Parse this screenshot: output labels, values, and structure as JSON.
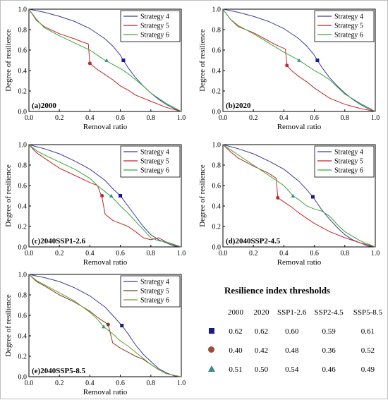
{
  "colors": {
    "s4": "#3b3b98",
    "s5": "#c2242b",
    "s6": "#3aa83a",
    "s5_e": "#7b3f1f",
    "s6_e": "#6ea03a",
    "marker_sq": "#1a1a8a",
    "marker_ci": "#9c4a3c",
    "marker_tri": "#3a8a8a"
  },
  "chart_data": [
    {
      "type": "line",
      "panel_label": "(a)2000",
      "xlabel": "Removal ratio",
      "ylabel": "Degree of resilience",
      "xlim": [
        0,
        1
      ],
      "ylim": [
        0,
        1
      ],
      "xticks": [
        "0.0",
        "0.2",
        "0.4",
        "0.6",
        "0.8",
        "1.0"
      ],
      "yticks": [
        "0.0",
        "0.2",
        "0.4",
        "0.6",
        "0.8",
        "1.0"
      ],
      "legend_position": "top-right",
      "series": [
        {
          "name": "Strategy 4",
          "x": [
            0,
            0.1,
            0.2,
            0.3,
            0.4,
            0.5,
            0.55,
            0.6,
            0.62,
            0.65,
            0.7,
            0.75,
            0.8,
            0.85,
            0.9,
            0.95,
            1.0
          ],
          "y": [
            1.0,
            0.97,
            0.93,
            0.88,
            0.81,
            0.71,
            0.64,
            0.55,
            0.5,
            0.43,
            0.33,
            0.25,
            0.18,
            0.12,
            0.07,
            0.03,
            0.0
          ]
        },
        {
          "name": "Strategy 5",
          "x": [
            0,
            0.05,
            0.1,
            0.2,
            0.3,
            0.35,
            0.39,
            0.4,
            0.45,
            0.5,
            0.55,
            0.6,
            0.65,
            0.7,
            0.8,
            0.9,
            1.0
          ],
          "y": [
            1.0,
            0.89,
            0.83,
            0.76,
            0.71,
            0.68,
            0.66,
            0.47,
            0.41,
            0.36,
            0.31,
            0.25,
            0.21,
            0.16,
            0.1,
            0.04,
            0.0
          ]
        },
        {
          "name": "Strategy 6",
          "x": [
            0,
            0.05,
            0.1,
            0.2,
            0.3,
            0.4,
            0.45,
            0.5,
            0.55,
            0.6,
            0.65,
            0.7,
            0.75,
            0.8,
            0.9,
            1.0
          ],
          "y": [
            1.0,
            0.9,
            0.82,
            0.74,
            0.67,
            0.6,
            0.55,
            0.5,
            0.46,
            0.42,
            0.37,
            0.31,
            0.25,
            0.18,
            0.08,
            0.0
          ]
        }
      ],
      "markers": [
        {
          "x": 0.62,
          "y": 0.5
        },
        {
          "x": 0.4,
          "y": 0.47
        },
        {
          "x": 0.51,
          "y": 0.5
        }
      ]
    },
    {
      "type": "line",
      "panel_label": "(b)2020",
      "xlabel": "Removal ratio",
      "ylabel": "Degree of resilience",
      "xlim": [
        0,
        1
      ],
      "ylim": [
        0,
        1
      ],
      "xticks": [
        "0.0",
        "0.2",
        "0.4",
        "0.6",
        "0.8",
        "1.0"
      ],
      "yticks": [
        "0.0",
        "0.2",
        "0.4",
        "0.6",
        "0.8",
        "1.0"
      ],
      "legend_position": "top-right",
      "series": [
        {
          "name": "Strategy 4",
          "x": [
            0,
            0.1,
            0.2,
            0.3,
            0.4,
            0.5,
            0.55,
            0.6,
            0.62,
            0.65,
            0.7,
            0.75,
            0.8,
            0.85,
            0.9,
            0.95,
            1.0
          ],
          "y": [
            1.0,
            0.97,
            0.93,
            0.88,
            0.81,
            0.71,
            0.64,
            0.55,
            0.5,
            0.43,
            0.33,
            0.25,
            0.18,
            0.12,
            0.07,
            0.03,
            0.0
          ]
        },
        {
          "name": "Strategy 5",
          "x": [
            0,
            0.05,
            0.1,
            0.2,
            0.3,
            0.35,
            0.41,
            0.42,
            0.45,
            0.5,
            0.55,
            0.6,
            0.65,
            0.7,
            0.8,
            0.9,
            1.0
          ],
          "y": [
            1.0,
            0.9,
            0.83,
            0.77,
            0.69,
            0.65,
            0.61,
            0.45,
            0.4,
            0.34,
            0.29,
            0.23,
            0.18,
            0.13,
            0.07,
            0.03,
            0.0
          ]
        },
        {
          "name": "Strategy 6",
          "x": [
            0,
            0.05,
            0.1,
            0.2,
            0.3,
            0.4,
            0.45,
            0.5,
            0.55,
            0.6,
            0.65,
            0.7,
            0.75,
            0.8,
            0.9,
            1.0
          ],
          "y": [
            1.0,
            0.9,
            0.84,
            0.76,
            0.67,
            0.58,
            0.54,
            0.5,
            0.45,
            0.4,
            0.36,
            0.31,
            0.24,
            0.17,
            0.08,
            0.0
          ]
        }
      ],
      "markers": [
        {
          "x": 0.62,
          "y": 0.5
        },
        {
          "x": 0.42,
          "y": 0.45
        },
        {
          "x": 0.5,
          "y": 0.5
        }
      ]
    },
    {
      "type": "line",
      "panel_label": "(c)2040SSP1-2.6",
      "xlabel": "Removal ratio",
      "ylabel": "Degree of resilience",
      "xlim": [
        0,
        1
      ],
      "ylim": [
        0,
        1
      ],
      "xticks": [
        "0.0",
        "0.2",
        "0.4",
        "0.6",
        "0.8",
        "1.0"
      ],
      "yticks": [
        "0.0",
        "0.2",
        "0.4",
        "0.6",
        "0.8",
        "1.0"
      ],
      "legend_position": "top-right",
      "series": [
        {
          "name": "Strategy 4",
          "x": [
            0,
            0.1,
            0.2,
            0.3,
            0.4,
            0.5,
            0.55,
            0.6,
            0.65,
            0.7,
            0.75,
            0.8,
            0.85,
            0.9,
            0.95,
            1.0
          ],
          "y": [
            1.0,
            0.96,
            0.91,
            0.84,
            0.76,
            0.65,
            0.57,
            0.5,
            0.4,
            0.3,
            0.2,
            0.12,
            0.07,
            0.04,
            0.01,
            0.0
          ]
        },
        {
          "name": "Strategy 5",
          "x": [
            0,
            0.05,
            0.1,
            0.2,
            0.3,
            0.4,
            0.45,
            0.48,
            0.5,
            0.55,
            0.6,
            0.65,
            0.7,
            0.75,
            0.8,
            0.85,
            0.9,
            0.95,
            1.0
          ],
          "y": [
            1.0,
            0.92,
            0.87,
            0.77,
            0.7,
            0.63,
            0.6,
            0.48,
            0.32,
            0.26,
            0.23,
            0.2,
            0.15,
            0.09,
            0.07,
            0.09,
            0.05,
            0.02,
            0.0
          ]
        },
        {
          "name": "Strategy 6",
          "x": [
            0,
            0.05,
            0.1,
            0.2,
            0.3,
            0.4,
            0.45,
            0.5,
            0.55,
            0.6,
            0.65,
            0.7,
            0.75,
            0.8,
            0.85,
            0.9,
            1.0
          ],
          "y": [
            1.0,
            0.94,
            0.9,
            0.83,
            0.76,
            0.67,
            0.6,
            0.54,
            0.48,
            0.4,
            0.33,
            0.25,
            0.17,
            0.09,
            0.06,
            0.05,
            0.0
          ]
        }
      ],
      "markers": [
        {
          "x": 0.6,
          "y": 0.5
        },
        {
          "x": 0.48,
          "y": 0.5
        },
        {
          "x": 0.54,
          "y": 0.5
        }
      ]
    },
    {
      "type": "line",
      "panel_label": "(d)2040SSP2-4.5",
      "xlabel": "Removal ratio",
      "ylabel": "Degree of resilience",
      "xlim": [
        0,
        1
      ],
      "ylim": [
        0,
        1
      ],
      "xticks": [
        "0.0",
        "0.2",
        "0.4",
        "0.6",
        "0.8",
        "1.0"
      ],
      "yticks": [
        "0.0",
        "0.2",
        "0.4",
        "0.6",
        "0.8",
        "1.0"
      ],
      "legend_position": "top-right",
      "series": [
        {
          "name": "Strategy 4",
          "x": [
            0,
            0.1,
            0.2,
            0.3,
            0.4,
            0.5,
            0.55,
            0.59,
            0.65,
            0.7,
            0.75,
            0.8,
            0.85,
            0.9,
            0.95,
            1.0
          ],
          "y": [
            1.0,
            0.96,
            0.91,
            0.84,
            0.76,
            0.64,
            0.56,
            0.49,
            0.36,
            0.27,
            0.19,
            0.12,
            0.07,
            0.04,
            0.01,
            0.0
          ]
        },
        {
          "name": "Strategy 5",
          "x": [
            0,
            0.05,
            0.1,
            0.2,
            0.3,
            0.35,
            0.36,
            0.4,
            0.45,
            0.5,
            0.55,
            0.6,
            0.65,
            0.7,
            0.8,
            0.9,
            1.0
          ],
          "y": [
            1.0,
            0.93,
            0.87,
            0.79,
            0.72,
            0.67,
            0.48,
            0.44,
            0.39,
            0.33,
            0.28,
            0.23,
            0.19,
            0.15,
            0.09,
            0.04,
            0.0
          ]
        },
        {
          "name": "Strategy 6",
          "x": [
            0,
            0.05,
            0.1,
            0.2,
            0.3,
            0.4,
            0.46,
            0.5,
            0.55,
            0.6,
            0.65,
            0.7,
            0.75,
            0.8,
            0.9,
            1.0
          ],
          "y": [
            1.0,
            0.95,
            0.9,
            0.8,
            0.7,
            0.6,
            0.5,
            0.46,
            0.4,
            0.37,
            0.35,
            0.3,
            0.22,
            0.15,
            0.06,
            0.0
          ]
        }
      ],
      "markers": [
        {
          "x": 0.59,
          "y": 0.49
        },
        {
          "x": 0.36,
          "y": 0.48
        },
        {
          "x": 0.46,
          "y": 0.5
        }
      ]
    },
    {
      "type": "line",
      "panel_label": "(e)2040SSP5-8.5",
      "xlabel": "Removal ratio",
      "ylabel": "Degree of resilience",
      "xlim": [
        0,
        1
      ],
      "ylim": [
        0,
        1
      ],
      "xticks": [
        "0.0",
        "0.2",
        "0.4",
        "0.6",
        "0.8",
        "1.0"
      ],
      "yticks": [
        "0.0",
        "0.2",
        "0.4",
        "0.6",
        "0.8",
        "1.0"
      ],
      "legend_position": "top-right",
      "series": [
        {
          "name": "Strategy 4",
          "x": [
            0,
            0.1,
            0.2,
            0.3,
            0.4,
            0.5,
            0.55,
            0.61,
            0.65,
            0.7,
            0.75,
            0.8,
            0.85,
            0.9,
            0.95,
            1.0
          ],
          "y": [
            1.0,
            0.97,
            0.93,
            0.87,
            0.79,
            0.68,
            0.6,
            0.5,
            0.42,
            0.31,
            0.22,
            0.15,
            0.08,
            0.04,
            0.01,
            0.0
          ]
        },
        {
          "name": "Strategy 5",
          "x": [
            0,
            0.05,
            0.1,
            0.2,
            0.3,
            0.4,
            0.45,
            0.5,
            0.52,
            0.55,
            0.6,
            0.65,
            0.7,
            0.75,
            0.8,
            0.85,
            0.9,
            1.0
          ],
          "y": [
            1.0,
            0.93,
            0.89,
            0.8,
            0.73,
            0.64,
            0.58,
            0.53,
            0.51,
            0.33,
            0.28,
            0.24,
            0.2,
            0.17,
            0.12,
            0.07,
            0.03,
            0.0
          ]
        },
        {
          "name": "Strategy 6",
          "x": [
            0,
            0.05,
            0.1,
            0.2,
            0.3,
            0.4,
            0.45,
            0.49,
            0.55,
            0.6,
            0.65,
            0.7,
            0.75,
            0.8,
            0.85,
            0.9,
            1.0
          ],
          "y": [
            1.0,
            0.94,
            0.9,
            0.82,
            0.74,
            0.63,
            0.56,
            0.49,
            0.42,
            0.35,
            0.3,
            0.24,
            0.18,
            0.12,
            0.07,
            0.03,
            0.0
          ]
        }
      ],
      "markers": [
        {
          "x": 0.61,
          "y": 0.5
        },
        {
          "x": 0.52,
          "y": 0.51
        },
        {
          "x": 0.49,
          "y": 0.49
        }
      ]
    },
    {
      "type": "table",
      "title": "Resilience index thresholds",
      "columns": [
        "2000",
        "2020",
        "SSP1-2.6",
        "SSP2-4.5",
        "SSP5-8.5"
      ],
      "rows": [
        {
          "symbol": "square",
          "values": [
            "0.62",
            "0.62",
            "0.60",
            "0.59",
            "0.61"
          ]
        },
        {
          "symbol": "circle",
          "values": [
            "0.40",
            "0.42",
            "0.48",
            "0.36",
            "0.52"
          ]
        },
        {
          "symbol": "triangle",
          "values": [
            "0.51",
            "0.50",
            "0.54",
            "0.46",
            "0.49"
          ]
        }
      ]
    }
  ]
}
